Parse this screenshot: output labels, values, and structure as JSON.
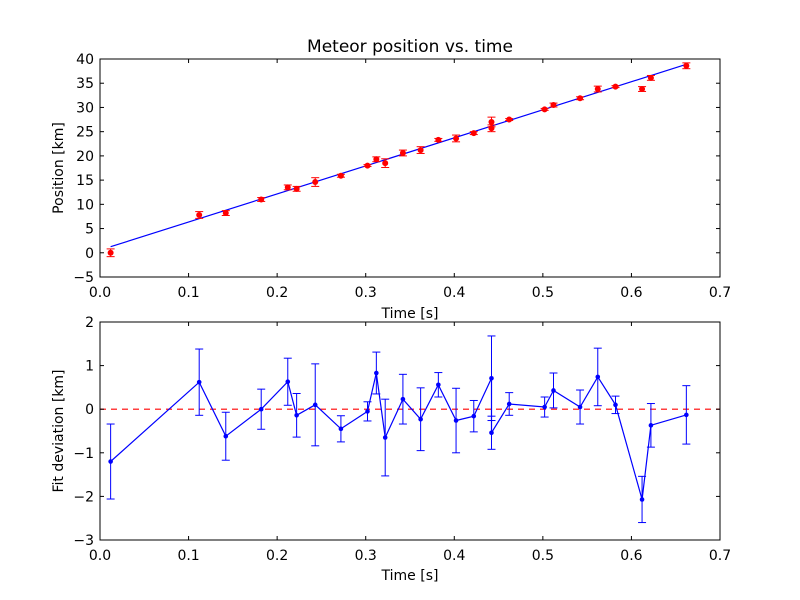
{
  "chart_data": [
    {
      "type": "scatter",
      "title": "Meteor position vs. time",
      "xlabel": "Time [s]",
      "ylabel": "Position [km]",
      "xlim": [
        0.0,
        0.7
      ],
      "ylim": [
        -5,
        40
      ],
      "xticks": [
        "0.0",
        "0.1",
        "0.2",
        "0.3",
        "0.4",
        "0.5",
        "0.6",
        "0.7"
      ],
      "yticks": [
        "−5",
        "0",
        "5",
        "10",
        "15",
        "20",
        "25",
        "30",
        "35",
        "40"
      ],
      "grid": false,
      "fit_color": "#0000ff",
      "point_color": "#ff0000",
      "series": [
        {
          "kind": "errorbar-points",
          "x": [
            0.012,
            0.112,
            0.142,
            0.182,
            0.212,
            0.222,
            0.243,
            0.272,
            0.302,
            0.312,
            0.322,
            0.342,
            0.362,
            0.382,
            0.402,
            0.422,
            0.442,
            0.442,
            0.462,
            0.502,
            0.512,
            0.542,
            0.562,
            0.582,
            0.612,
            0.622,
            0.662
          ],
          "y": [
            0.0,
            7.8,
            8.2,
            11.0,
            13.5,
            13.2,
            14.6,
            15.9,
            18.0,
            19.3,
            18.5,
            20.6,
            21.2,
            23.3,
            23.6,
            24.7,
            27.0,
            25.7,
            27.5,
            29.6,
            30.5,
            31.9,
            33.8,
            34.3,
            33.8,
            36.1,
            38.6
          ],
          "err": [
            0.8,
            0.7,
            0.5,
            0.4,
            0.5,
            0.5,
            0.9,
            0.3,
            0.2,
            0.5,
            0.9,
            0.6,
            0.7,
            0.3,
            0.7,
            0.3,
            1.0,
            0.7,
            0.2,
            0.2,
            0.4,
            0.3,
            0.6,
            0.2,
            0.5,
            0.5,
            0.6
          ]
        },
        {
          "kind": "fit-line",
          "x": [
            0.012,
            0.662
          ],
          "y": [
            1.25,
            38.9
          ]
        }
      ]
    },
    {
      "type": "line",
      "xlabel": "Time [s]",
      "ylabel": "Fit deviation [km]",
      "xlim": [
        0.0,
        0.7
      ],
      "ylim": [
        -3,
        2
      ],
      "xticks": [
        "0.0",
        "0.1",
        "0.2",
        "0.3",
        "0.4",
        "0.5",
        "0.6",
        "0.7"
      ],
      "yticks": [
        "−3",
        "−2",
        "−1",
        "0",
        "1",
        "2"
      ],
      "grid": false,
      "line_color": "#0000ff",
      "zero_line_color": "#ff0000",
      "zero_line_y": 0,
      "series": [
        {
          "kind": "errorbar-line",
          "x": [
            0.012,
            0.112,
            0.142,
            0.182,
            0.212,
            0.222,
            0.243,
            0.272,
            0.302,
            0.312,
            0.322,
            0.342,
            0.362,
            0.382,
            0.402,
            0.422,
            0.442,
            0.442,
            0.462,
            0.502,
            0.512,
            0.542,
            0.562,
            0.582,
            0.612,
            0.622,
            0.662
          ],
          "y": [
            -1.2,
            0.62,
            -0.62,
            0.0,
            0.63,
            -0.14,
            0.1,
            -0.45,
            -0.05,
            0.83,
            -0.65,
            0.23,
            -0.23,
            0.56,
            -0.26,
            -0.16,
            0.71,
            -0.54,
            0.12,
            0.05,
            0.43,
            0.05,
            0.74,
            0.1,
            -2.07,
            -0.37,
            -0.13
          ],
          "err": [
            0.86,
            0.76,
            0.55,
            0.46,
            0.54,
            0.5,
            0.94,
            0.3,
            0.22,
            0.48,
            0.88,
            0.57,
            0.72,
            0.28,
            0.74,
            0.36,
            0.97,
            0.38,
            0.26,
            0.23,
            0.4,
            0.39,
            0.66,
            0.2,
            0.53,
            0.5,
            0.67
          ]
        }
      ]
    }
  ]
}
